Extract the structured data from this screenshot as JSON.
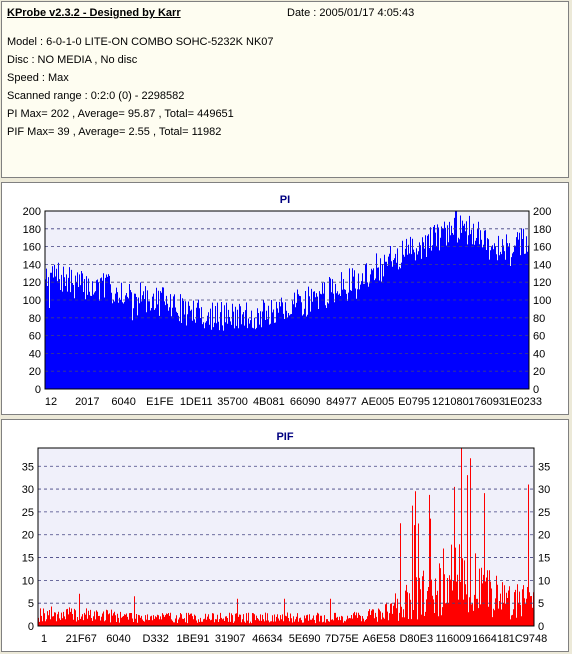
{
  "header": {
    "title": "KProbe v2.3.2 - Designed by Karr",
    "date": "Date : 2005/01/17 4:05:43",
    "lines": [
      "Model : 6-0-1-0 LITE-ON COMBO SOHC-5232K NK07",
      "Disc : NO MEDIA , No disc",
      "Speed : Max",
      "Scanned range : 0:2:0 (0) - 2298582",
      "PI Max= 202 , Average= 95.87 , Total= 449651",
      "PIF Max= 39 , Average= 2.55 , Total= 11982"
    ]
  },
  "chart_data": [
    {
      "type": "bar",
      "title": "PI",
      "color": "#0000ff",
      "ylim": [
        0,
        200
      ],
      "yticks": [
        0,
        20,
        40,
        60,
        80,
        100,
        120,
        140,
        160,
        180,
        200
      ],
      "xtick_labels": [
        "12",
        "2017",
        "6040",
        "E1FE",
        "1DE11",
        "35700",
        "4B081",
        "66090",
        "84977",
        "AE005",
        "E0795",
        "121080",
        "176093",
        "1E0233"
      ],
      "grid": true,
      "profile": [
        [
          0,
          132
        ],
        [
          0.05,
          120
        ],
        [
          0.1,
          114
        ],
        [
          0.15,
          112
        ],
        [
          0.2,
          104
        ],
        [
          0.25,
          97
        ],
        [
          0.3,
          86
        ],
        [
          0.35,
          82
        ],
        [
          0.4,
          81
        ],
        [
          0.45,
          83
        ],
        [
          0.5,
          92
        ],
        [
          0.55,
          100
        ],
        [
          0.6,
          112
        ],
        [
          0.65,
          125
        ],
        [
          0.7,
          140
        ],
        [
          0.75,
          155
        ],
        [
          0.8,
          168
        ],
        [
          0.84,
          180
        ],
        [
          0.86,
          182
        ],
        [
          0.9,
          172
        ],
        [
          0.92,
          162
        ],
        [
          0.96,
          160
        ],
        [
          1.0,
          168
        ]
      ],
      "peak": {
        "x": 0.85,
        "value": 202
      }
    },
    {
      "type": "bar",
      "title": "PIF",
      "color": "#ff0000",
      "ylim": [
        0,
        39
      ],
      "yticks": [
        0,
        5,
        10,
        15,
        20,
        25,
        30,
        35
      ],
      "xtick_labels": [
        "1",
        "21F67",
        "6040",
        "D332",
        "1BE91",
        "31907",
        "46634",
        "5E690",
        "7D75E",
        "A6E58",
        "D80E3",
        "116009",
        "166418",
        "1C9748"
      ],
      "grid": true,
      "profile": [
        [
          0,
          3
        ],
        [
          0.3,
          2
        ],
        [
          0.6,
          2
        ],
        [
          0.7,
          3
        ],
        [
          0.75,
          6
        ],
        [
          0.8,
          9
        ],
        [
          0.85,
          14
        ],
        [
          0.88,
          12
        ],
        [
          0.92,
          7
        ],
        [
          0.96,
          5
        ],
        [
          1.0,
          8
        ]
      ],
      "peak": {
        "x": 0.855,
        "value": 39
      },
      "end_peak": {
        "x": 0.99,
        "value": 31
      }
    }
  ]
}
